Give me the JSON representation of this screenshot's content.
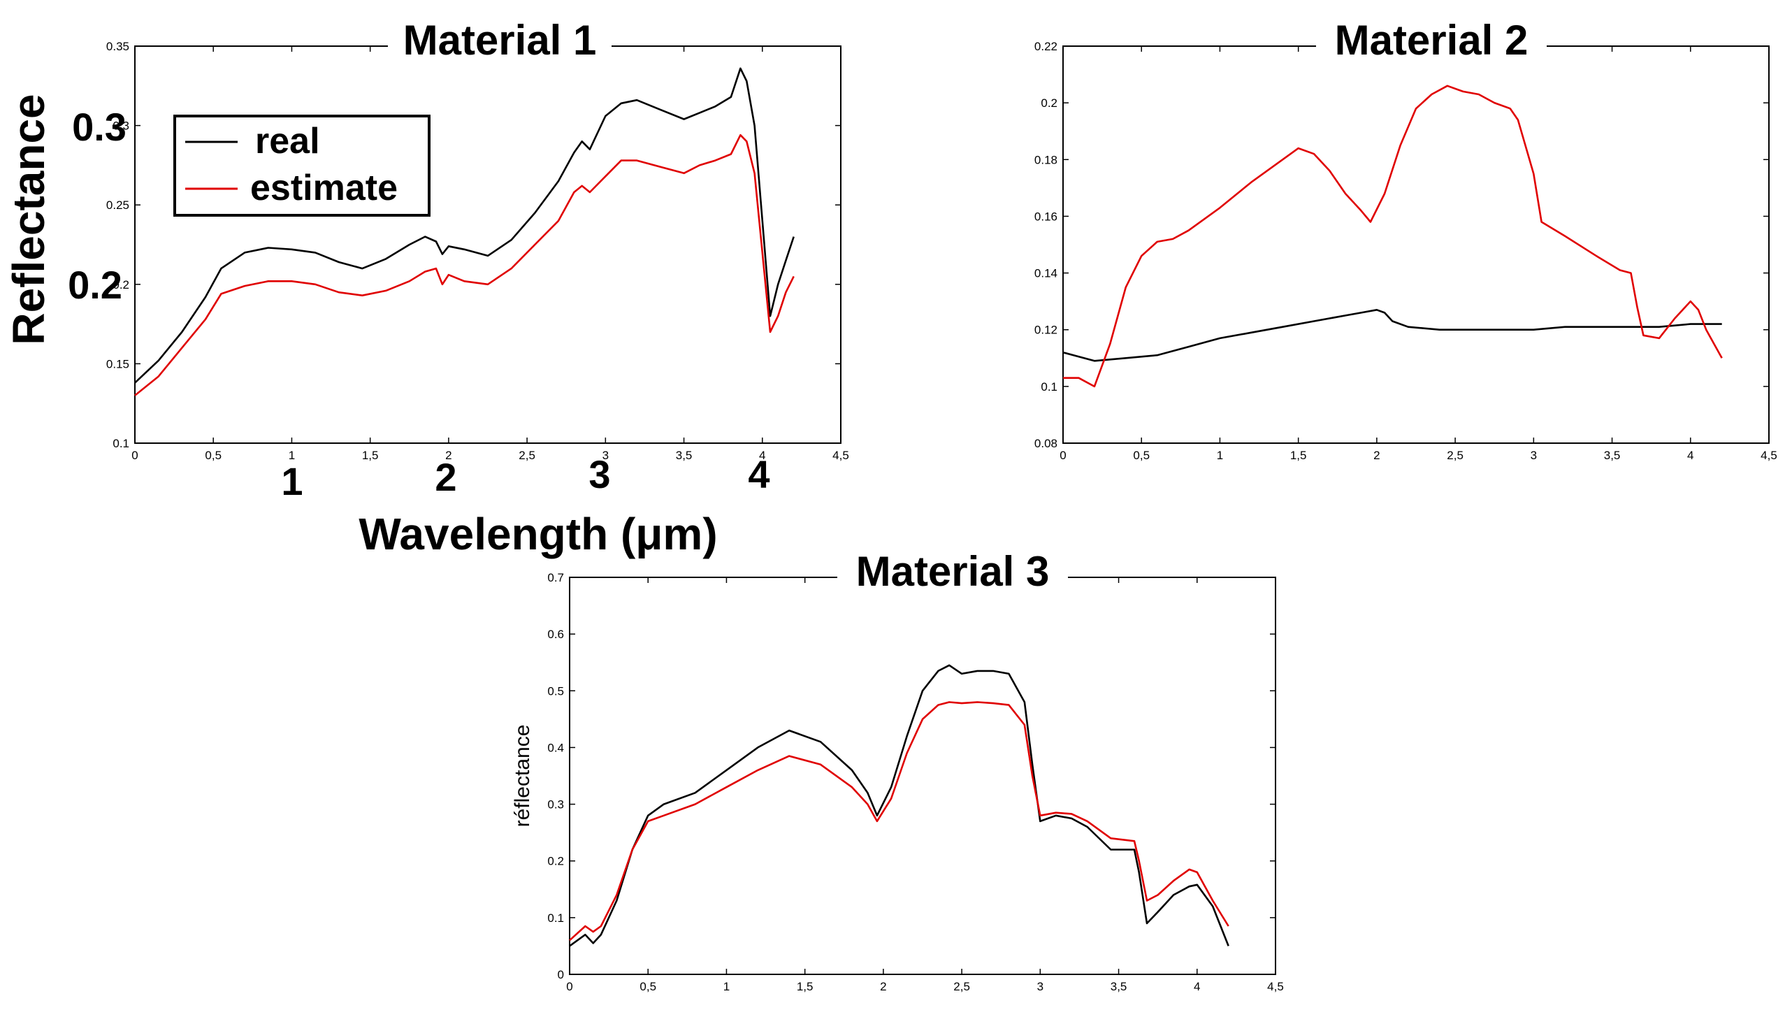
{
  "colors": {
    "real": "#000000",
    "estimate": "#e00000",
    "background": "#ffffff"
  },
  "legend": {
    "real_label": "real",
    "estimate_label": "estimate"
  },
  "overlay": {
    "y_label": "Reflectance",
    "x_label": "Wavelength (μm)",
    "y_big_ticks": [
      "0.3",
      "0.2"
    ],
    "x_big_ticks": [
      "1",
      "2",
      "3",
      "4"
    ]
  },
  "chart_data": [
    {
      "type": "line",
      "title": "Material 1",
      "xlabel": "Wavelength (μm)",
      "ylabel": "Reflectance",
      "xlim": [
        0,
        4.5
      ],
      "ylim": [
        0.1,
        0.35
      ],
      "x_ticks": [
        "0",
        "0,5",
        "1",
        "1,5",
        "2",
        "2,5",
        "3",
        "3,5",
        "4",
        "4,5"
      ],
      "y_ticks": [
        "0.1",
        "0.15",
        "0.2",
        "0.25",
        "0.3",
        "0.35"
      ],
      "series": [
        {
          "name": "real",
          "x": [
            0,
            0.15,
            0.3,
            0.45,
            0.55,
            0.7,
            0.85,
            1.0,
            1.15,
            1.3,
            1.45,
            1.6,
            1.75,
            1.85,
            1.92,
            1.96,
            2.0,
            2.1,
            2.25,
            2.4,
            2.55,
            2.7,
            2.8,
            2.85,
            2.9,
            3.0,
            3.1,
            3.2,
            3.35,
            3.5,
            3.6,
            3.7,
            3.8,
            3.86,
            3.9,
            3.95,
            4.0,
            4.05,
            4.1,
            4.15,
            4.2
          ],
          "values": [
            0.138,
            0.152,
            0.17,
            0.192,
            0.21,
            0.22,
            0.223,
            0.222,
            0.22,
            0.214,
            0.21,
            0.216,
            0.225,
            0.23,
            0.227,
            0.219,
            0.224,
            0.222,
            0.218,
            0.228,
            0.245,
            0.265,
            0.283,
            0.29,
            0.285,
            0.306,
            0.314,
            0.316,
            0.31,
            0.304,
            0.308,
            0.312,
            0.318,
            0.336,
            0.328,
            0.3,
            0.24,
            0.18,
            0.2,
            0.215,
            0.23
          ]
        },
        {
          "name": "estimate",
          "x": [
            0,
            0.15,
            0.3,
            0.45,
            0.55,
            0.7,
            0.85,
            1.0,
            1.15,
            1.3,
            1.45,
            1.6,
            1.75,
            1.85,
            1.92,
            1.96,
            2.0,
            2.1,
            2.25,
            2.4,
            2.55,
            2.7,
            2.8,
            2.85,
            2.9,
            3.0,
            3.1,
            3.2,
            3.35,
            3.5,
            3.6,
            3.7,
            3.8,
            3.86,
            3.9,
            3.95,
            4.0,
            4.05,
            4.1,
            4.15,
            4.2
          ],
          "values": [
            0.13,
            0.142,
            0.16,
            0.178,
            0.194,
            0.199,
            0.202,
            0.202,
            0.2,
            0.195,
            0.193,
            0.196,
            0.202,
            0.208,
            0.21,
            0.2,
            0.206,
            0.202,
            0.2,
            0.21,
            0.225,
            0.24,
            0.258,
            0.262,
            0.258,
            0.268,
            0.278,
            0.278,
            0.274,
            0.27,
            0.275,
            0.278,
            0.282,
            0.294,
            0.29,
            0.27,
            0.22,
            0.17,
            0.18,
            0.195,
            0.205
          ]
        }
      ]
    },
    {
      "type": "line",
      "title": "Material 2",
      "xlabel": "",
      "ylabel": "",
      "xlim": [
        0,
        4.5
      ],
      "ylim": [
        0.08,
        0.22
      ],
      "x_ticks": [
        "0",
        "0,5",
        "1",
        "1,5",
        "2",
        "2,5",
        "3",
        "3,5",
        "4",
        "4,5"
      ],
      "y_ticks": [
        "0.08",
        "0.1",
        "0.12",
        "0.14",
        "0.16",
        "0.18",
        "0.2",
        "0.22"
      ],
      "series": [
        {
          "name": "real",
          "x": [
            0,
            0.2,
            0.4,
            0.6,
            0.8,
            1.0,
            1.2,
            1.4,
            1.6,
            1.8,
            1.9,
            2.0,
            2.05,
            2.1,
            2.2,
            2.4,
            2.6,
            2.8,
            3.0,
            3.2,
            3.4,
            3.6,
            3.8,
            4.0,
            4.2
          ],
          "values": [
            0.112,
            0.109,
            0.11,
            0.111,
            0.114,
            0.117,
            0.119,
            0.121,
            0.123,
            0.125,
            0.126,
            0.127,
            0.126,
            0.123,
            0.121,
            0.12,
            0.12,
            0.12,
            0.12,
            0.121,
            0.121,
            0.121,
            0.121,
            0.122,
            0.122
          ]
        },
        {
          "name": "estimate",
          "x": [
            0,
            0.1,
            0.2,
            0.3,
            0.4,
            0.5,
            0.6,
            0.7,
            0.8,
            1.0,
            1.2,
            1.4,
            1.5,
            1.6,
            1.7,
            1.8,
            1.9,
            1.96,
            2.05,
            2.15,
            2.25,
            2.35,
            2.45,
            2.55,
            2.65,
            2.75,
            2.85,
            2.9,
            3.0,
            3.05,
            3.2,
            3.4,
            3.55,
            3.62,
            3.66,
            3.7,
            3.8,
            3.9,
            4.0,
            4.05,
            4.1,
            4.2
          ],
          "values": [
            0.103,
            0.103,
            0.1,
            0.115,
            0.135,
            0.146,
            0.151,
            0.152,
            0.155,
            0.163,
            0.172,
            0.18,
            0.184,
            0.182,
            0.176,
            0.168,
            0.162,
            0.158,
            0.168,
            0.185,
            0.198,
            0.203,
            0.206,
            0.204,
            0.203,
            0.2,
            0.198,
            0.194,
            0.175,
            0.158,
            0.153,
            0.146,
            0.141,
            0.14,
            0.128,
            0.118,
            0.117,
            0.124,
            0.13,
            0.127,
            0.12,
            0.11
          ]
        }
      ]
    },
    {
      "type": "line",
      "title": "Material 3",
      "xlabel": "",
      "ylabel": "réflectance",
      "xlim": [
        0,
        4.5
      ],
      "ylim": [
        0,
        0.7
      ],
      "x_ticks": [
        "0",
        "0,5",
        "1",
        "1,5",
        "2",
        "2,5",
        "3",
        "3,5",
        "4",
        "4,5"
      ],
      "y_ticks": [
        "0",
        "0.1",
        "0.2",
        "0.3",
        "0.4",
        "0.5",
        "0.6",
        "0.7"
      ],
      "series": [
        {
          "name": "real",
          "x": [
            0,
            0.1,
            0.15,
            0.2,
            0.3,
            0.4,
            0.5,
            0.6,
            0.8,
            1.0,
            1.2,
            1.4,
            1.6,
            1.8,
            1.9,
            1.96,
            2.05,
            2.15,
            2.25,
            2.35,
            2.42,
            2.5,
            2.6,
            2.7,
            2.8,
            2.9,
            2.95,
            3.0,
            3.1,
            3.2,
            3.3,
            3.45,
            3.6,
            3.63,
            3.68,
            3.75,
            3.85,
            3.95,
            4.0,
            4.1,
            4.2
          ],
          "values": [
            0.05,
            0.07,
            0.055,
            0.07,
            0.13,
            0.22,
            0.28,
            0.3,
            0.32,
            0.36,
            0.4,
            0.43,
            0.41,
            0.36,
            0.32,
            0.28,
            0.33,
            0.42,
            0.5,
            0.535,
            0.545,
            0.53,
            0.535,
            0.535,
            0.53,
            0.48,
            0.37,
            0.27,
            0.28,
            0.275,
            0.26,
            0.22,
            0.22,
            0.18,
            0.09,
            0.11,
            0.14,
            0.155,
            0.158,
            0.12,
            0.05
          ]
        },
        {
          "name": "estimate",
          "x": [
            0,
            0.1,
            0.15,
            0.2,
            0.3,
            0.4,
            0.5,
            0.6,
            0.8,
            1.0,
            1.2,
            1.4,
            1.6,
            1.8,
            1.9,
            1.96,
            2.05,
            2.15,
            2.25,
            2.35,
            2.42,
            2.5,
            2.6,
            2.7,
            2.8,
            2.9,
            2.95,
            3.0,
            3.1,
            3.2,
            3.3,
            3.45,
            3.6,
            3.63,
            3.68,
            3.75,
            3.85,
            3.95,
            4.0,
            4.1,
            4.2
          ],
          "values": [
            0.06,
            0.085,
            0.075,
            0.085,
            0.14,
            0.22,
            0.27,
            0.28,
            0.3,
            0.33,
            0.36,
            0.385,
            0.37,
            0.33,
            0.3,
            0.27,
            0.31,
            0.39,
            0.45,
            0.475,
            0.48,
            0.478,
            0.48,
            0.478,
            0.475,
            0.44,
            0.35,
            0.28,
            0.285,
            0.283,
            0.27,
            0.24,
            0.235,
            0.2,
            0.13,
            0.14,
            0.165,
            0.185,
            0.18,
            0.13,
            0.085
          ]
        }
      ]
    }
  ]
}
